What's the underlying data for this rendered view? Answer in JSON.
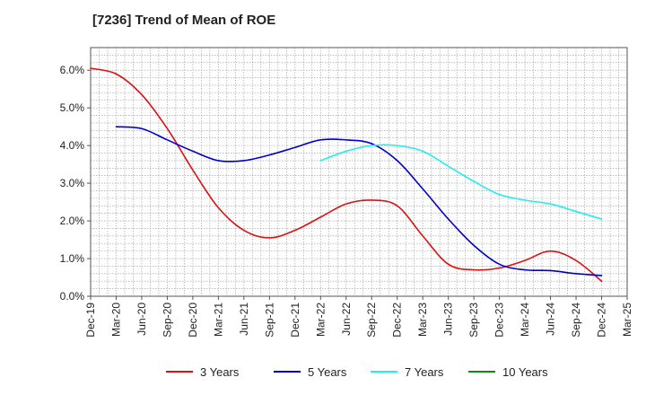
{
  "title": "[7236]  Trend of Mean of ROE",
  "chart_data": {
    "type": "line",
    "title": "[7236]  Trend of Mean of ROE",
    "xlabel": "",
    "ylabel": "",
    "x_ticks": [
      "Dec-19",
      "Mar-20",
      "Jun-20",
      "Sep-20",
      "Dec-20",
      "Mar-21",
      "Jun-21",
      "Sep-21",
      "Dec-21",
      "Mar-22",
      "Jun-22",
      "Sep-22",
      "Dec-22",
      "Mar-23",
      "Jun-23",
      "Sep-23",
      "Dec-23",
      "Mar-24",
      "Jun-24",
      "Sep-24",
      "Dec-24",
      "Mar-25"
    ],
    "y_ticks": [
      "0.0%",
      "1.0%",
      "2.0%",
      "3.0%",
      "4.0%",
      "5.0%",
      "6.0%"
    ],
    "ylim": [
      0,
      6.6
    ],
    "grid": true,
    "legend": "bottom",
    "series": [
      {
        "name": "3 Years",
        "color": "#dd1111",
        "x": [
          "Dec-19",
          "Mar-20",
          "Jun-20",
          "Sep-20",
          "Dec-20",
          "Mar-21",
          "Jun-21",
          "Sep-21",
          "Dec-21",
          "Mar-22",
          "Jun-22",
          "Sep-22",
          "Dec-22",
          "Mar-23",
          "Jun-23",
          "Sep-23",
          "Dec-23",
          "Mar-24",
          "Jun-24",
          "Sep-24",
          "Dec-24"
        ],
        "values": [
          6.05,
          5.9,
          5.35,
          4.45,
          3.35,
          2.35,
          1.75,
          1.55,
          1.75,
          2.1,
          2.45,
          2.55,
          2.4,
          1.6,
          0.85,
          0.7,
          0.75,
          0.95,
          1.2,
          0.95,
          0.4
        ]
      },
      {
        "name": "5 Years",
        "color": "#0000cc",
        "x": [
          "Mar-20",
          "Jun-20",
          "Sep-20",
          "Dec-20",
          "Mar-21",
          "Jun-21",
          "Sep-21",
          "Dec-21",
          "Mar-22",
          "Jun-22",
          "Sep-22",
          "Dec-22",
          "Mar-23",
          "Jun-23",
          "Sep-23",
          "Dec-23",
          "Mar-24",
          "Jun-24",
          "Sep-24",
          "Dec-24"
        ],
        "values": [
          4.5,
          4.45,
          4.15,
          3.85,
          3.6,
          3.6,
          3.75,
          3.95,
          4.15,
          4.15,
          4.05,
          3.6,
          2.85,
          2.05,
          1.35,
          0.85,
          0.7,
          0.68,
          0.6,
          0.55
        ]
      },
      {
        "name": "7 Years",
        "color": "#22eeee",
        "x": [
          "Mar-22",
          "Jun-22",
          "Sep-22",
          "Dec-22",
          "Mar-23",
          "Jun-23",
          "Sep-23",
          "Dec-23",
          "Mar-24",
          "Jun-24",
          "Sep-24",
          "Dec-24"
        ],
        "values": [
          3.6,
          3.85,
          4.0,
          4.0,
          3.85,
          3.45,
          3.05,
          2.7,
          2.55,
          2.45,
          2.25,
          2.05
        ]
      },
      {
        "name": "10 Years",
        "color": "#118811",
        "x": [],
        "values": []
      }
    ]
  }
}
